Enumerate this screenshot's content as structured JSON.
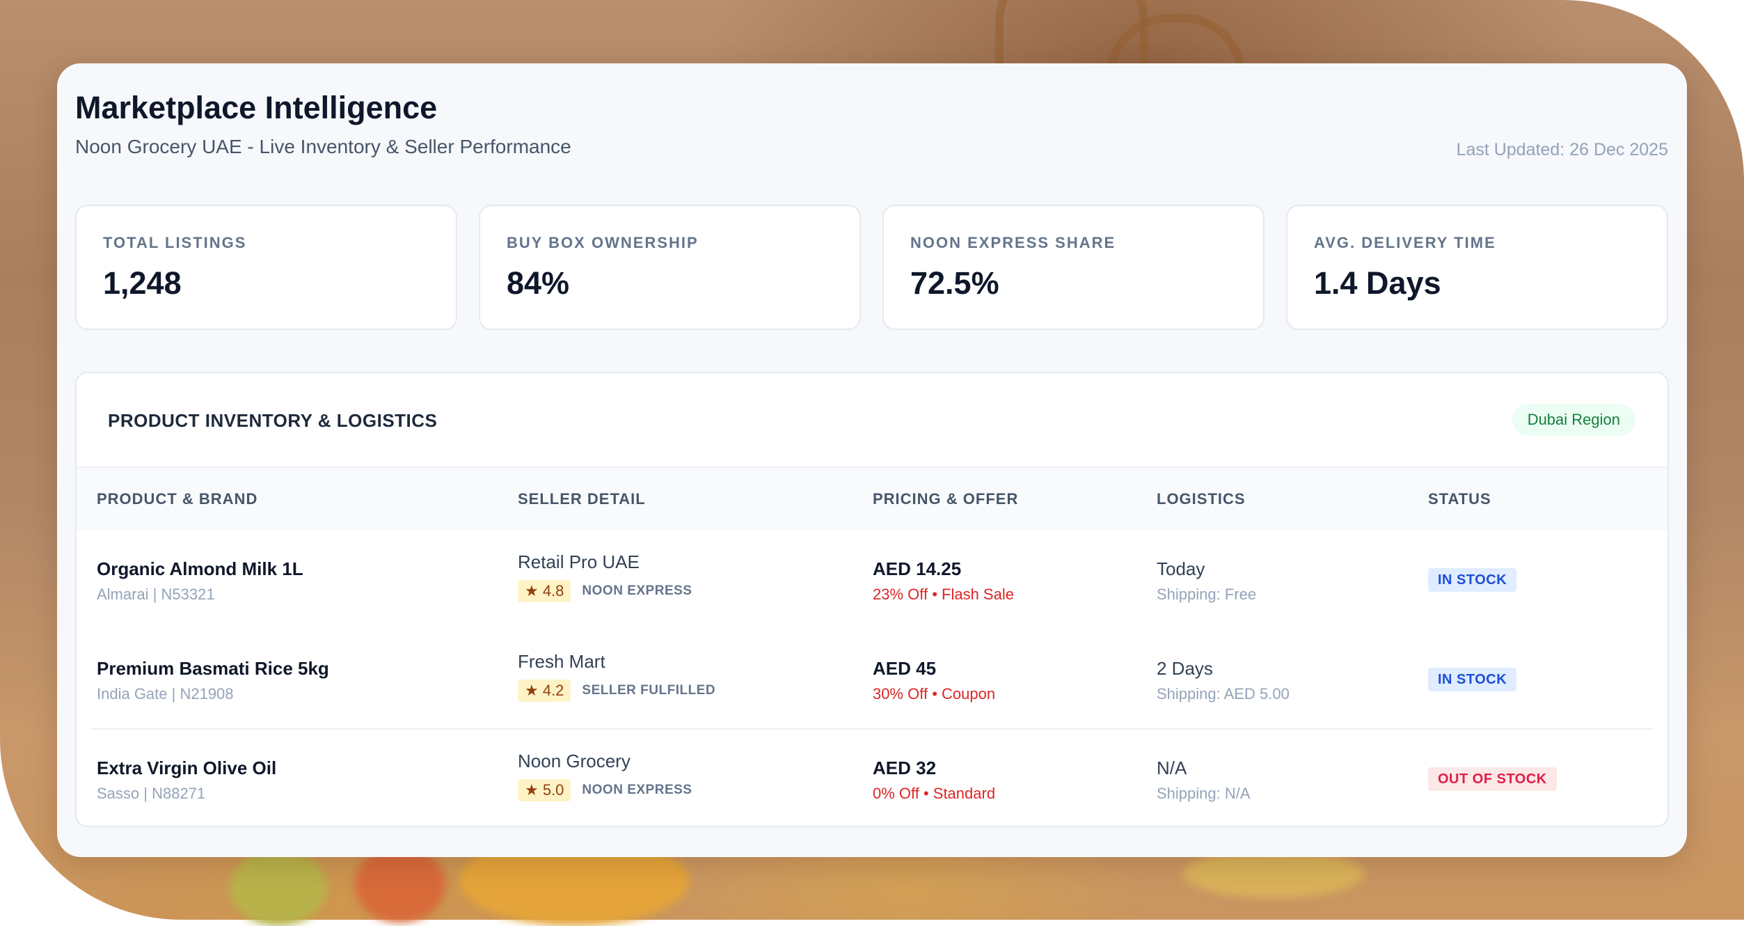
{
  "header": {
    "title": "Marketplace Intelligence",
    "subtitle": "Noon Grocery UAE - Live Inventory & Seller Performance",
    "last_updated": "Last Updated: 26 Dec 2025"
  },
  "kpis": [
    {
      "label": "TOTAL LISTINGS",
      "value": "1,248"
    },
    {
      "label": "BUY BOX OWNERSHIP",
      "value": "84%"
    },
    {
      "label": "NOON EXPRESS SHARE",
      "value": "72.5%"
    },
    {
      "label": "AVG. DELIVERY TIME",
      "value": "1.4 Days"
    }
  ],
  "inventory": {
    "title": "PRODUCT INVENTORY & LOGISTICS",
    "region": "Dubai Region",
    "columns": [
      "PRODUCT & BRAND",
      "SELLER DETAIL",
      "PRICING & OFFER",
      "LOGISTICS",
      "STATUS"
    ],
    "rows": [
      {
        "product": "Organic Almond Milk 1L",
        "brand": "Almarai | N53321",
        "seller": "Retail Pro UAE",
        "rating": "★ 4.8",
        "fulfillment": "NOON EXPRESS",
        "price": "AED 14.25",
        "offer": "23% Off • Flash Sale",
        "delivery": "Today",
        "shipping": "Shipping: Free",
        "status": "IN STOCK"
      },
      {
        "product": "Premium Basmati Rice 5kg",
        "brand": "India Gate | N21908",
        "seller": "Fresh Mart",
        "rating": "★ 4.2",
        "fulfillment": "SELLER FULFILLED",
        "price": "AED 45",
        "offer": "30% Off • Coupon",
        "delivery": "2 Days",
        "shipping": "Shipping: AED 5.00",
        "status": "IN STOCK"
      },
      {
        "product": "Extra Virgin Olive Oil",
        "brand": "Sasso | N88271",
        "seller": "Noon Grocery",
        "rating": "★ 5.0",
        "fulfillment": "NOON EXPRESS",
        "price": "AED 32",
        "offer": "0% Off • Standard",
        "delivery": "N/A",
        "shipping": "Shipping: N/A",
        "status": "OUT OF STOCK"
      }
    ]
  },
  "colors": {
    "in_stock_bg": "#e0ecff",
    "in_stock_text": "#1d4ed8",
    "out_of_stock_bg": "#fde8e8",
    "out_of_stock_text": "#e11d48",
    "offer_text": "#dc2626",
    "region_text": "#15803d"
  }
}
